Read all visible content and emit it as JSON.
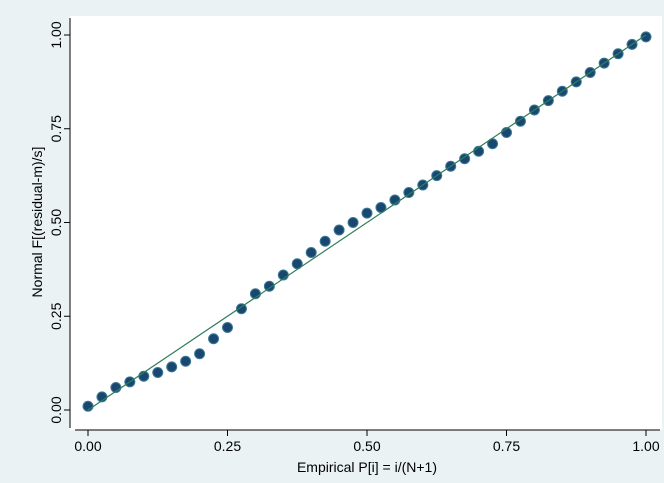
{
  "chart_data": {
    "type": "scatter",
    "x_label": "Empirical P[i] = i/(N+1)",
    "y_label": "Normal F[(residual-m)/s]",
    "xlim": [
      0,
      1
    ],
    "ylim": [
      0,
      1
    ],
    "xticks": [
      {
        "value": 0,
        "label": "0.00"
      },
      {
        "value": 0.25,
        "label": "0.25"
      },
      {
        "value": 0.5,
        "label": "0.50"
      },
      {
        "value": 0.75,
        "label": "0.75"
      },
      {
        "value": 1,
        "label": "1.00"
      }
    ],
    "yticks": [
      {
        "value": 0,
        "label": "0.00"
      },
      {
        "value": 0.25,
        "label": "0.25"
      },
      {
        "value": 0.5,
        "label": "0.50"
      },
      {
        "value": 0.75,
        "label": "0.75"
      },
      {
        "value": 1,
        "label": "1.00"
      }
    ],
    "color": "#1a476f",
    "x": [
      0,
      0.025,
      0.05,
      0.075,
      0.1,
      0.125,
      0.15,
      0.175,
      0.2,
      0.225,
      0.25,
      0.275,
      0.3,
      0.325,
      0.35,
      0.375,
      0.4,
      0.425,
      0.45,
      0.475,
      0.5,
      0.525,
      0.55,
      0.575,
      0.6,
      0.625,
      0.65,
      0.675,
      0.7,
      0.725,
      0.75,
      0.775,
      0.8,
      0.825,
      0.85,
      0.875,
      0.9,
      0.925,
      0.95,
      0.975,
      1
    ],
    "values": [
      0.01,
      0.035,
      0.06,
      0.075,
      0.09,
      0.1,
      0.115,
      0.13,
      0.15,
      0.19,
      0.22,
      0.27,
      0.31,
      0.33,
      0.36,
      0.39,
      0.42,
      0.45,
      0.48,
      0.5,
      0.525,
      0.54,
      0.56,
      0.58,
      0.6,
      0.625,
      0.65,
      0.67,
      0.69,
      0.71,
      0.74,
      0.77,
      0.8,
      0.825,
      0.85,
      0.875,
      0.9,
      0.925,
      0.95,
      0.975,
      0.995
    ],
    "reference_line": {
      "color": "#2e7d5a",
      "x": [
        0,
        1
      ],
      "y": [
        0,
        1
      ]
    }
  }
}
